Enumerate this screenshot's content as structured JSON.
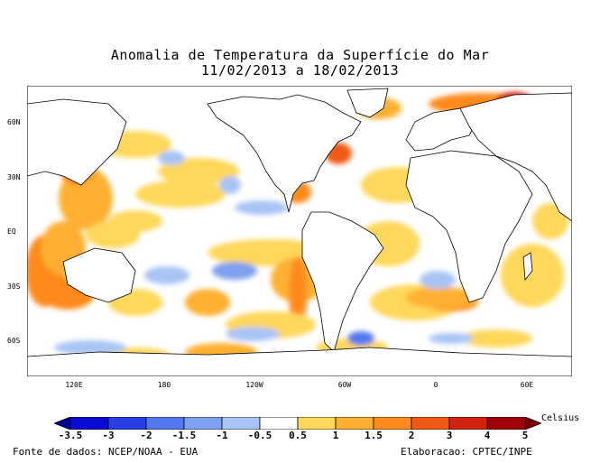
{
  "title_line1": "Anomalia de Temperatura da Superfície do Mar",
  "title_line2": "11/02/2013 a 18/02/2013",
  "lat_labels": [
    "60N",
    "30N",
    "EQ",
    "30S",
    "60S"
  ],
  "lon_labels": [
    "120E",
    "180",
    "120W",
    "60W",
    "0",
    "60E"
  ],
  "colorbar": {
    "unit": "Celsius",
    "labels": [
      "-3.5",
      "-3",
      "-2",
      "-1.5",
      "-1",
      "-0.5",
      "0.5",
      "1",
      "1.5",
      "2",
      "3",
      "4",
      "5"
    ],
    "colors": [
      "#00009b",
      "#0b0bd4",
      "#2a3de6",
      "#5577ee",
      "#7fa0f0",
      "#a8c4f5",
      "#ffffff",
      "#ffd75a",
      "#ffb032",
      "#ff8a1e",
      "#f05a14",
      "#d2230e",
      "#a0040a",
      "#7a0000"
    ]
  },
  "footer_left": "Fonte de dados: NCEP/NOAA - EUA",
  "footer_right": "Elaboracao: CPTEC/INPE"
}
